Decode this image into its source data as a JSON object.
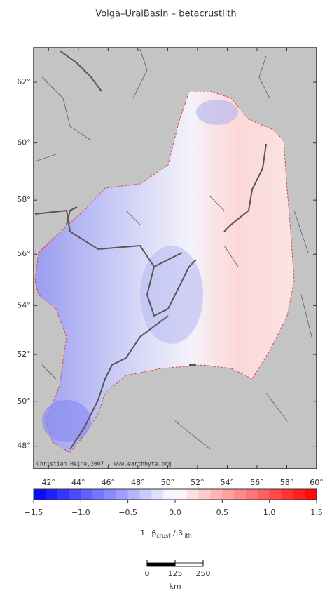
{
  "map": {
    "title": "Volga–UralBasin – betacrustlith",
    "credit": "Christian Heine,2007 - www.earthbyte.org",
    "lonlim": [
      41,
      60
    ],
    "latlim": [
      46.96,
      63.08
    ],
    "lonticks": [
      {
        "value": 42,
        "label": "42°"
      },
      {
        "value": 44,
        "label": "44°"
      },
      {
        "value": 46,
        "label": "46°"
      },
      {
        "value": 48,
        "label": "48°"
      },
      {
        "value": 50,
        "label": "50°"
      },
      {
        "value": 52,
        "label": "52°"
      },
      {
        "value": 54,
        "label": "54°"
      },
      {
        "value": 56,
        "label": "56°"
      },
      {
        "value": 58,
        "label": "58°"
      },
      {
        "value": 60,
        "label": "60°"
      }
    ],
    "latticks": [
      {
        "value": 48,
        "label": "48°"
      },
      {
        "value": 50,
        "label": "50°"
      },
      {
        "value": 52,
        "label": "52°"
      },
      {
        "value": 54,
        "label": "54°"
      },
      {
        "value": 56,
        "label": "56°"
      },
      {
        "value": 58,
        "label": "58°"
      },
      {
        "value": 60,
        "label": "60°"
      },
      {
        "value": 62,
        "label": "62°"
      }
    ]
  },
  "colorbar": {
    "lim": [
      -1.5,
      1.5
    ],
    "colors": [
      "#0000ff",
      "#ffffff",
      "#ff0000"
    ],
    "ticks": [
      {
        "value": -1.5,
        "label": "−1.5"
      },
      {
        "value": -1.0,
        "label": "−1.0"
      },
      {
        "value": -0.5,
        "label": "−0.5"
      },
      {
        "value": 0,
        "label": "0.0"
      },
      {
        "value": 0.5,
        "label": "0.5"
      },
      {
        "value": 1.0,
        "label": "1.0"
      },
      {
        "value": 1.5,
        "label": "1.5"
      }
    ],
    "label": [
      "1−β",
      "crust",
      " / β",
      "lith"
    ]
  },
  "scalebar": {
    "ticks": [
      0,
      125,
      250
    ],
    "unit": "km"
  }
}
